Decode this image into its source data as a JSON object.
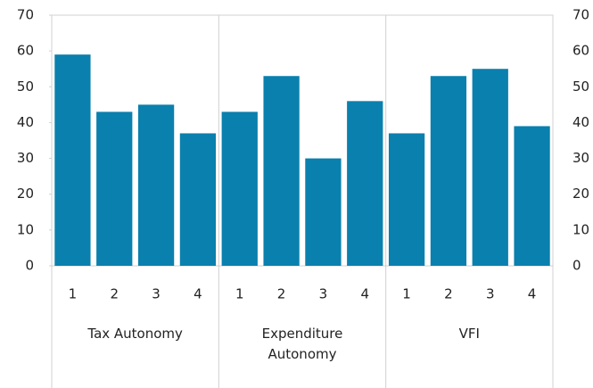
{
  "chart_data": {
    "type": "bar",
    "categories": [
      "1",
      "2",
      "3",
      "4",
      "1",
      "2",
      "3",
      "4",
      "1",
      "2",
      "3",
      "4"
    ],
    "groups": [
      "Tax Autonomy",
      "Expenditure Autonomy",
      "VFI"
    ],
    "values": [
      59,
      43,
      45,
      37,
      43,
      53,
      30,
      46,
      37,
      53,
      55,
      39
    ],
    "color": "#0a80ae",
    "ylim": [
      0,
      70
    ],
    "yticks": [
      0,
      10,
      20,
      30,
      40,
      50,
      60,
      70
    ],
    "y2lim": [
      0,
      70
    ],
    "y2ticks": [
      0,
      10,
      20,
      30,
      40,
      50,
      60,
      70
    ]
  }
}
